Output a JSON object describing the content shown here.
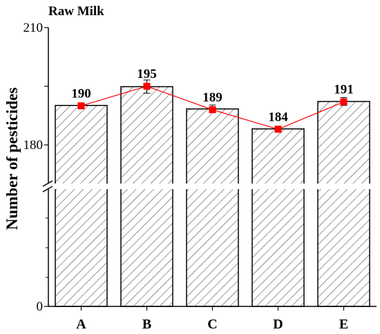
{
  "chart_data": {
    "type": "bar",
    "title": "Raw Milk",
    "xlabel": "",
    "ylabel": "Number of pesticides",
    "categories": [
      "A",
      "B",
      "C",
      "D",
      "E"
    ],
    "series": [
      {
        "type": "bar",
        "values": [
          190.1,
          194.9,
          189.2,
          184.1,
          191.1
        ],
        "error": [
          0.3,
          1.7,
          1.0,
          0.7,
          1.0
        ]
      },
      {
        "type": "line",
        "values": [
          190,
          195,
          189,
          184,
          191
        ],
        "color": "#ff0000"
      }
    ],
    "data_labels": [
      "190",
      "195",
      "189",
      "184",
      "191"
    ],
    "yticks": [
      "0",
      "180",
      "210"
    ],
    "axis_break": [
      0,
      176
    ],
    "ylim": [
      0,
      210
    ],
    "grid": false,
    "bar_hatch": "diagonal"
  }
}
